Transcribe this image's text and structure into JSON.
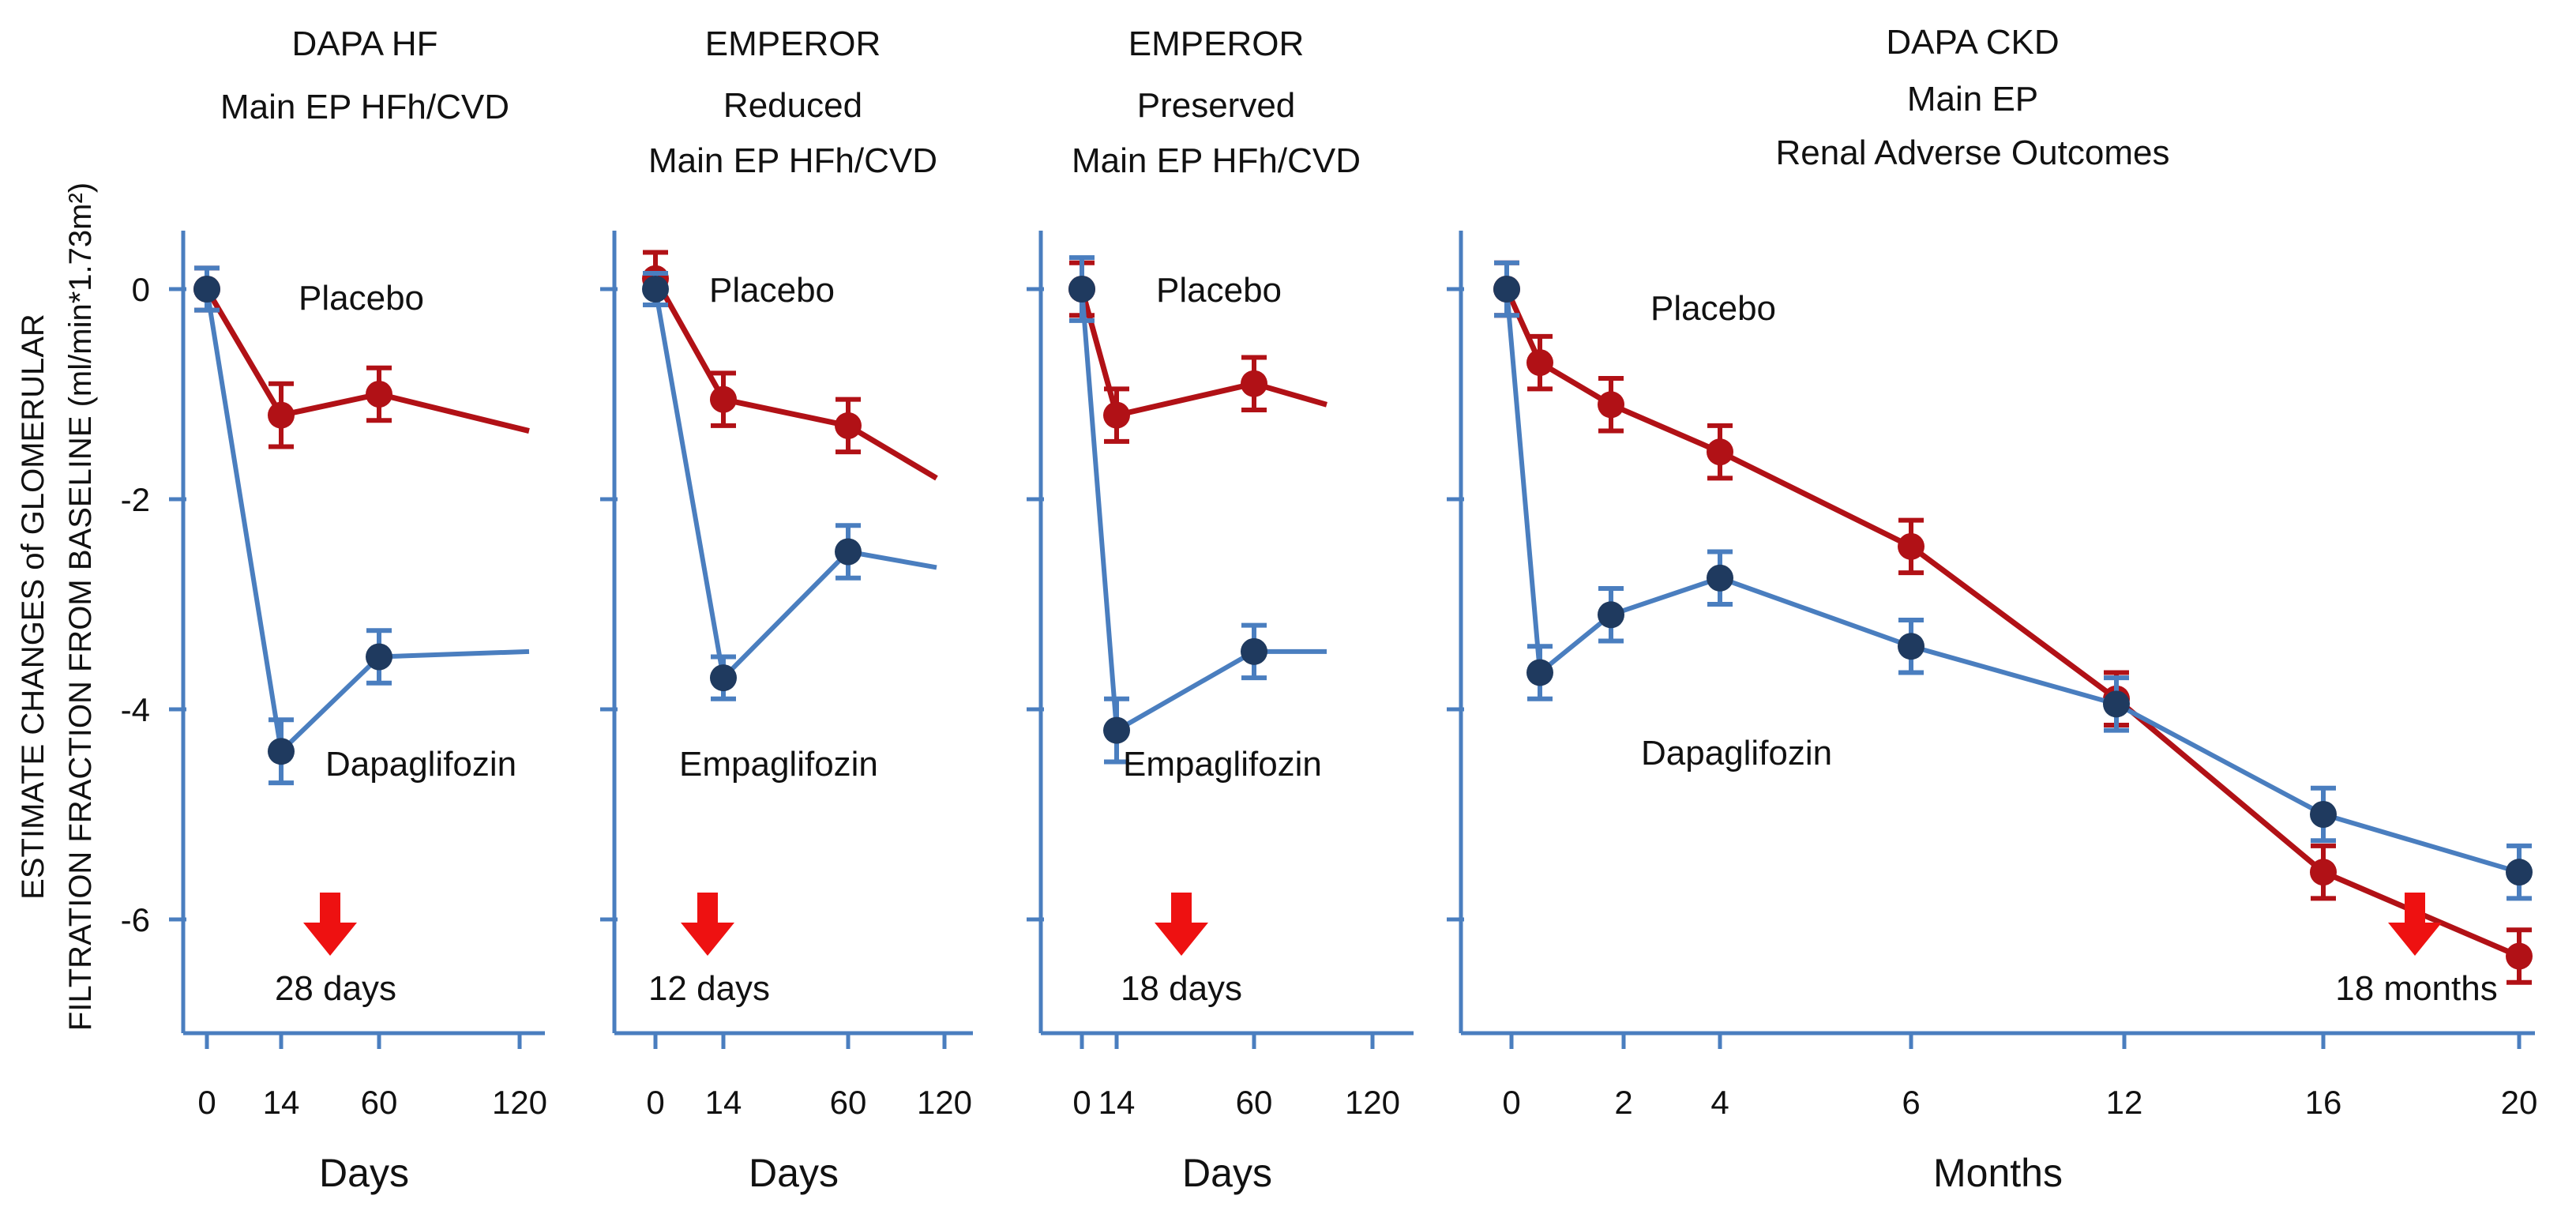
{
  "colors": {
    "placebo": "#b11116",
    "drug": "#4a7ebf",
    "drug_marker": "#1f3a5f",
    "axis": "#4a7ebf",
    "arrow": "#ee1111"
  },
  "y_axis_label": [
    "ESTIMATE CHANGES of GLOMERULAR",
    "FILTRATION FRACTION FROM BASELINE (ml/min*1.73m²)"
  ],
  "y_ticks": [
    "0",
    "-2",
    "-4",
    "-6"
  ],
  "chart_data": [
    {
      "type": "line",
      "title": [
        "DAPA HF",
        "Main EP HFh/CVD"
      ],
      "xlabel": "Days",
      "ylim": [
        -7.2,
        0.5
      ],
      "x_ticks": [
        "0",
        "14",
        "60",
        "120"
      ],
      "arrow_label": "28 days",
      "series": [
        {
          "name": "Placebo",
          "x": [
            "0",
            "14",
            "60",
            "end"
          ],
          "values": [
            0,
            -1.2,
            -1.0,
            -1.35
          ],
          "err": [
            0.2,
            0.3,
            0.25,
            0
          ]
        },
        {
          "name": "Dapaglifozin",
          "x": [
            "0",
            "14",
            "60",
            "end"
          ],
          "values": [
            0,
            -4.4,
            -3.5,
            -3.45
          ],
          "err": [
            0.2,
            0.3,
            0.25,
            0
          ]
        }
      ]
    },
    {
      "type": "line",
      "title": [
        "EMPEROR",
        "Reduced",
        "Main EP HFh/CVD"
      ],
      "xlabel": "Days",
      "ylim": [
        -7.2,
        0.5
      ],
      "x_ticks": [
        "0",
        "14",
        "60",
        "120"
      ],
      "arrow_label": "12 days",
      "series": [
        {
          "name": "Placebo",
          "x": [
            "0",
            "14",
            "60",
            "end"
          ],
          "values": [
            0.1,
            -1.05,
            -1.3,
            -1.8
          ],
          "err": [
            0.25,
            0.25,
            0.25,
            0
          ]
        },
        {
          "name": "Empaglifozin",
          "x": [
            "0",
            "14",
            "60",
            "end"
          ],
          "values": [
            0,
            -3.7,
            -2.5,
            -2.65
          ],
          "err": [
            0.15,
            0.2,
            0.25,
            0
          ]
        }
      ]
    },
    {
      "type": "line",
      "title": [
        "EMPEROR",
        "Preserved",
        "Main EP HFh/CVD"
      ],
      "xlabel": "Days",
      "ylim": [
        -7.2,
        0.5
      ],
      "x_ticks": [
        "0",
        "14",
        "60",
        "120"
      ],
      "arrow_label": "18 days",
      "series": [
        {
          "name": "Placebo",
          "x": [
            "0",
            "14",
            "60",
            "end"
          ],
          "values": [
            0,
            -1.2,
            -0.9,
            -1.1
          ],
          "err": [
            0.25,
            0.25,
            0.25,
            0
          ]
        },
        {
          "name": "Empaglifozin",
          "x": [
            "0",
            "14",
            "60",
            "end"
          ],
          "values": [
            0,
            -4.2,
            -3.45,
            -3.45
          ],
          "err": [
            0.3,
            0.3,
            0.25,
            0
          ]
        }
      ]
    },
    {
      "type": "line",
      "title": [
        "DAPA CKD",
        "Main EP",
        "Renal Adverse Outcomes"
      ],
      "xlabel": "Months",
      "ylim": [
        -7.2,
        0.5
      ],
      "x_ticks": [
        "0",
        "2",
        "4",
        "6",
        "12",
        "16",
        "20"
      ],
      "arrow_label": "18 months",
      "series": [
        {
          "name": "Placebo",
          "x": [
            "0",
            "0.5",
            "2",
            "4",
            "6",
            "12",
            "16",
            "20"
          ],
          "values": [
            0,
            -0.7,
            -1.1,
            -1.55,
            -2.45,
            -3.9,
            -5.55,
            -6.35
          ],
          "err": [
            0.25,
            0.25,
            0.25,
            0.25,
            0.25,
            0.25,
            0.25,
            0.25
          ]
        },
        {
          "name": "Dapaglifozin",
          "x": [
            "0",
            "0.5",
            "2",
            "4",
            "6",
            "12",
            "16",
            "20"
          ],
          "values": [
            0,
            -3.65,
            -3.1,
            -2.75,
            -3.4,
            -3.95,
            -5.0,
            -5.55
          ],
          "err": [
            0.25,
            0.25,
            0.25,
            0.25,
            0.25,
            0.25,
            0.25,
            0.25
          ]
        }
      ]
    }
  ]
}
